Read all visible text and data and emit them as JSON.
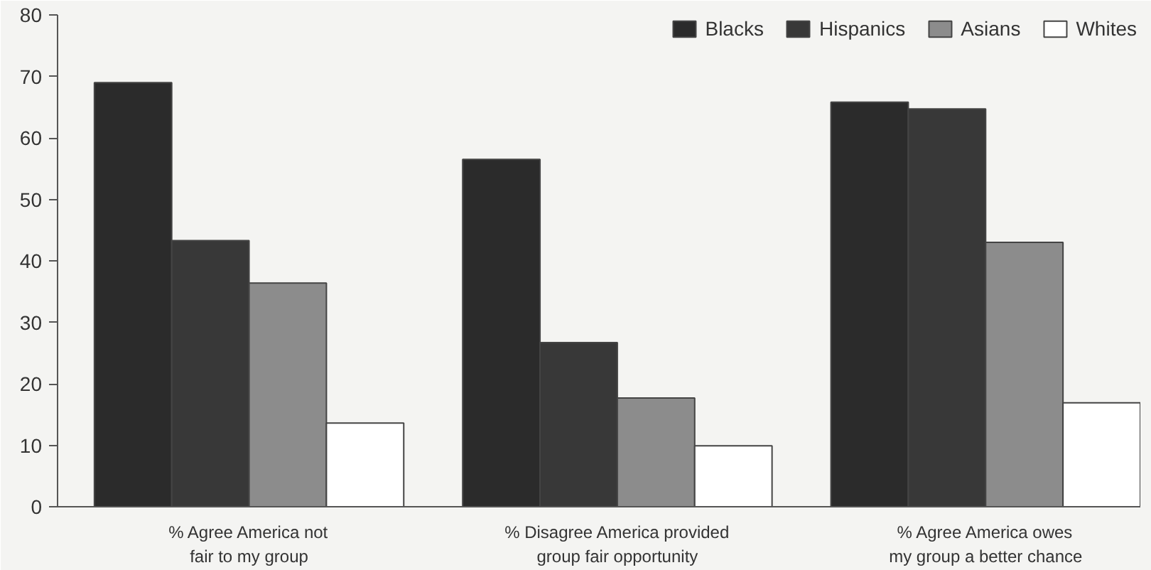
{
  "chart_data": {
    "type": "bar",
    "categories": [
      "% Agree America not\nfair to my group",
      "% Disagree America provided\ngroup fair opportunity",
      "% Agree America owes\nmy group a better chance"
    ],
    "series": [
      {
        "name": "Blacks",
        "color": "#2b2b2b",
        "values": [
          69,
          56.5,
          65.8
        ]
      },
      {
        "name": "Hispanics",
        "color": "#383838",
        "values": [
          43.3,
          26.7,
          64.7
        ]
      },
      {
        "name": "Asians",
        "color": "#8c8c8c",
        "values": [
          36.4,
          17.7,
          43
        ]
      },
      {
        "name": "Whites",
        "color": "#ffffff",
        "values": [
          13.6,
          9.9,
          16.9
        ]
      }
    ],
    "ylim": [
      0,
      80
    ],
    "yticks": [
      0,
      10,
      20,
      30,
      40,
      50,
      60,
      70,
      80
    ],
    "grid": false,
    "legend": "top right"
  }
}
